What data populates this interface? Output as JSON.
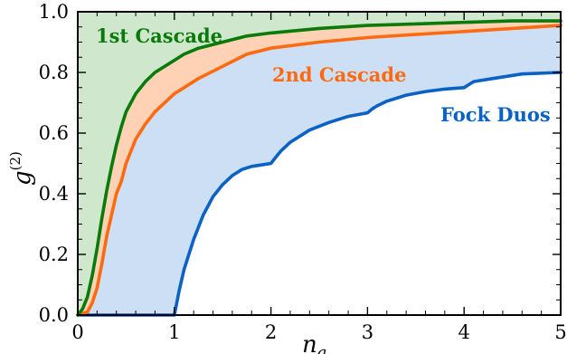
{
  "chart_data": {
    "type": "line",
    "xlabel": "n",
    "xlabel_sub": "a",
    "ylabel": "g",
    "ylabel_sup": "(2)",
    "xlim": [
      0,
      5
    ],
    "ylim": [
      0,
      1
    ],
    "xticks": [
      "0",
      "1",
      "2",
      "3",
      "4",
      "5"
    ],
    "yticks": [
      "0.0",
      "0.2",
      "0.4",
      "0.6",
      "0.8",
      "1.0"
    ],
    "grid": false,
    "legend": "none",
    "colors": {
      "first_line": "#0a7a0a",
      "first_fill": "#cfe7cc",
      "second_line": "#ff6a10",
      "second_fill": "#ffd2b5",
      "fock_line": "#0a62c4",
      "fock_fill": "#cddff4"
    },
    "series": [
      {
        "name": "1st Cascade",
        "color": "#0a7a0a",
        "x": [
          0,
          0.05,
          0.1,
          0.15,
          0.2,
          0.25,
          0.3,
          0.35,
          0.4,
          0.45,
          0.5,
          0.6,
          0.7,
          0.8,
          0.9,
          1.0,
          1.1,
          1.25,
          1.5,
          1.75,
          2.0,
          2.5,
          3.0,
          3.5,
          4.0,
          4.5,
          5.0
        ],
        "values": [
          0,
          0.02,
          0.06,
          0.13,
          0.22,
          0.32,
          0.41,
          0.49,
          0.56,
          0.62,
          0.67,
          0.73,
          0.77,
          0.8,
          0.82,
          0.84,
          0.86,
          0.88,
          0.9,
          0.92,
          0.93,
          0.945,
          0.955,
          0.96,
          0.965,
          0.97,
          0.97
        ]
      },
      {
        "name": "2nd Cascade",
        "color": "#ff6a10",
        "x": [
          0,
          0.1,
          0.15,
          0.2,
          0.25,
          0.3,
          0.35,
          0.4,
          0.45,
          0.5,
          0.6,
          0.7,
          0.8,
          0.9,
          1.0,
          1.1,
          1.25,
          1.5,
          1.75,
          2.0,
          2.5,
          3.0,
          3.5,
          4.0,
          4.5,
          5.0
        ],
        "values": [
          0,
          0.01,
          0.04,
          0.09,
          0.17,
          0.26,
          0.33,
          0.4,
          0.44,
          0.5,
          0.58,
          0.63,
          0.67,
          0.7,
          0.73,
          0.75,
          0.78,
          0.82,
          0.86,
          0.88,
          0.9,
          0.915,
          0.925,
          0.935,
          0.945,
          0.955
        ]
      },
      {
        "name": "Fock Duos",
        "color": "#0a62c4",
        "x": [
          0,
          1.0,
          1.05,
          1.1,
          1.2,
          1.3,
          1.4,
          1.5,
          1.6,
          1.7,
          1.8,
          1.9,
          2.0,
          2.05,
          2.1,
          2.2,
          2.4,
          2.6,
          2.8,
          3.0,
          3.05,
          3.1,
          3.2,
          3.4,
          3.6,
          3.8,
          4.0,
          4.05,
          4.1,
          4.3,
          4.6,
          5.0
        ],
        "values": [
          0,
          0,
          0.08,
          0.15,
          0.25,
          0.33,
          0.39,
          0.43,
          0.46,
          0.48,
          0.49,
          0.495,
          0.5,
          0.52,
          0.54,
          0.57,
          0.61,
          0.635,
          0.655,
          0.667,
          0.68,
          0.69,
          0.705,
          0.725,
          0.737,
          0.745,
          0.75,
          0.76,
          0.77,
          0.78,
          0.795,
          0.8
        ]
      }
    ],
    "annotations": [
      "1st Cascade",
      "2nd Cascade",
      "Fock Duos"
    ]
  }
}
